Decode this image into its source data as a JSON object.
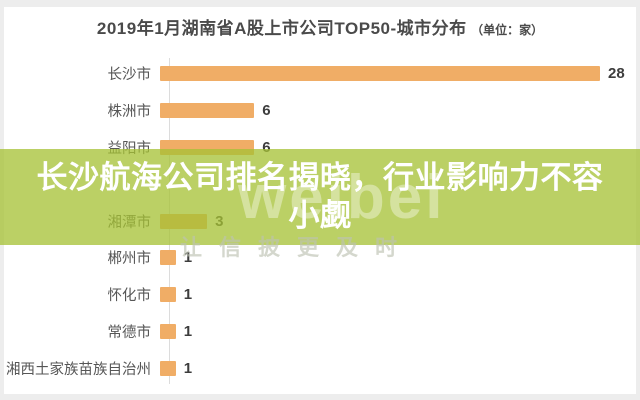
{
  "page": {
    "title_main": "2019年1月湖南省A股上市公司TOP50-城市分布",
    "title_unit": "（单位：家）"
  },
  "chart_data": {
    "type": "bar",
    "orientation": "horizontal",
    "title": "2019年1月湖南省A股上市公司TOP50-城市分布",
    "unit_label": "单位：家",
    "categories": [
      "长沙市",
      "株洲市",
      "益阳市",
      "",
      "湘潭市",
      "郴州市",
      "怀化市",
      "常德市",
      "湘西土家族苗族自治州"
    ],
    "values": [
      28,
      6,
      6,
      null,
      3,
      1,
      1,
      1,
      1
    ],
    "hidden_row_index": 3,
    "xlim": [
      0,
      28
    ],
    "bar_color": "#F0AD66",
    "grid": false,
    "legend": false
  },
  "overlay": {
    "headline_line1": "长沙航海公司排名揭晓，行业影响力不容",
    "headline_line2": "小觑",
    "bg_color": "#A6C134",
    "text_color": "#FFFFFF"
  },
  "watermark": {
    "logo_text": "weibei",
    "slogan": "让信披更及时"
  },
  "colors": {
    "bar": "#F0AD66",
    "title_text": "#4A4A4A",
    "label_text": "#565656",
    "value_text": "#3D3D3D",
    "axis_line": "#DCDCDC",
    "frame": "#EDEDED",
    "panel": "#FFFFFF"
  }
}
